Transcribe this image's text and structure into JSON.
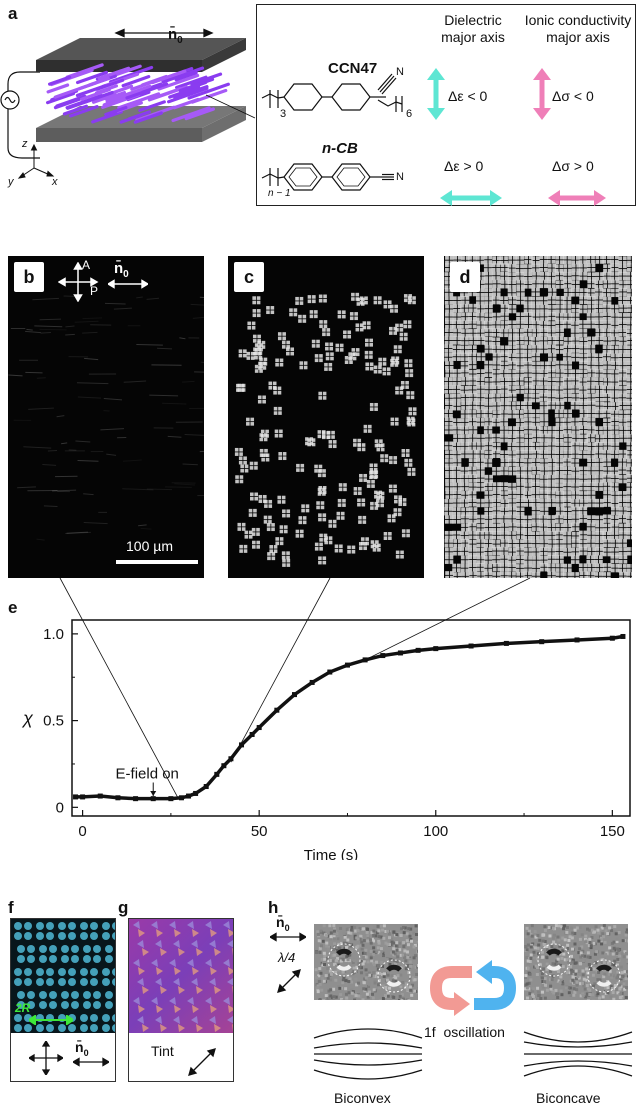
{
  "panels": {
    "a": "a",
    "b": "b",
    "c": "c",
    "d": "d",
    "e": "e",
    "f": "f",
    "g": "g",
    "h": "h"
  },
  "panel_a": {
    "director_label": "n̄",
    "director_sub": "0",
    "axis_z": "z",
    "axis_y": "y",
    "axis_x": "x",
    "col_dielectric": [
      "Dielectric",
      "major axis"
    ],
    "col_ionic": [
      "Ionic conductivity",
      "major axis"
    ],
    "mol1_name": "CCN47",
    "mol1_sub_left": "3",
    "mol1_sub_right": "6",
    "mol1_N": "N",
    "mol1_de": "Δε < 0",
    "mol1_ds": "Δσ < 0",
    "mol2_name": "n-CB",
    "mol2_sub": "n − 1",
    "mol2_N": "N",
    "mol2_de": "Δε > 0",
    "mol2_ds": "Δσ > 0",
    "colors": {
      "cyan": "#5ee6d3",
      "pink": "#ef7fb8",
      "purple": "#8a3cf0",
      "plate": "#3c3c3c"
    }
  },
  "panel_b": {
    "A": "A",
    "P": "P",
    "n0": "n̄",
    "n0_sub": "0",
    "scalebar": "100 µm"
  },
  "panel_e": {
    "ylabel": "χ",
    "xlabel": "Time (s)",
    "annotation": "E-field on"
  },
  "panel_f": {
    "label_2R": "2R",
    "n0": "n̄",
    "n0_sub": "0"
  },
  "panel_g": {
    "tint": "Tint"
  },
  "panel_h": {
    "n0": "n̄",
    "n0_sub": "0",
    "lambda": "λ/4",
    "oscillation": "1f  oscillation",
    "biconvex": "Biconvex",
    "biconcave": "Biconcave"
  },
  "chart_data": {
    "type": "scatter",
    "xlabel": "Time (s)",
    "ylabel": "χ",
    "xlim": [
      -3,
      155
    ],
    "ylim": [
      -0.05,
      1.08
    ],
    "xticks": [
      0,
      50,
      100,
      150
    ],
    "yticks": [
      0,
      0.5,
      1.0
    ],
    "ytick_labels": [
      "0",
      "0.5",
      "1.0"
    ],
    "annotation": {
      "text": "E-field on",
      "x": 20
    },
    "series": [
      {
        "x": [
          -2,
          0,
          5,
          10,
          15,
          20,
          25,
          28,
          30,
          32,
          35,
          38,
          40,
          42,
          45,
          48,
          50,
          55,
          60,
          65,
          70,
          75,
          80,
          85,
          90,
          95,
          100,
          110,
          120,
          130,
          140,
          150,
          153
        ],
        "values": [
          0.06,
          0.06,
          0.065,
          0.055,
          0.05,
          0.05,
          0.05,
          0.055,
          0.065,
          0.08,
          0.12,
          0.19,
          0.24,
          0.28,
          0.36,
          0.42,
          0.46,
          0.56,
          0.65,
          0.72,
          0.78,
          0.82,
          0.85,
          0.875,
          0.89,
          0.905,
          0.915,
          0.93,
          0.945,
          0.955,
          0.965,
          0.975,
          0.985
        ]
      }
    ]
  }
}
